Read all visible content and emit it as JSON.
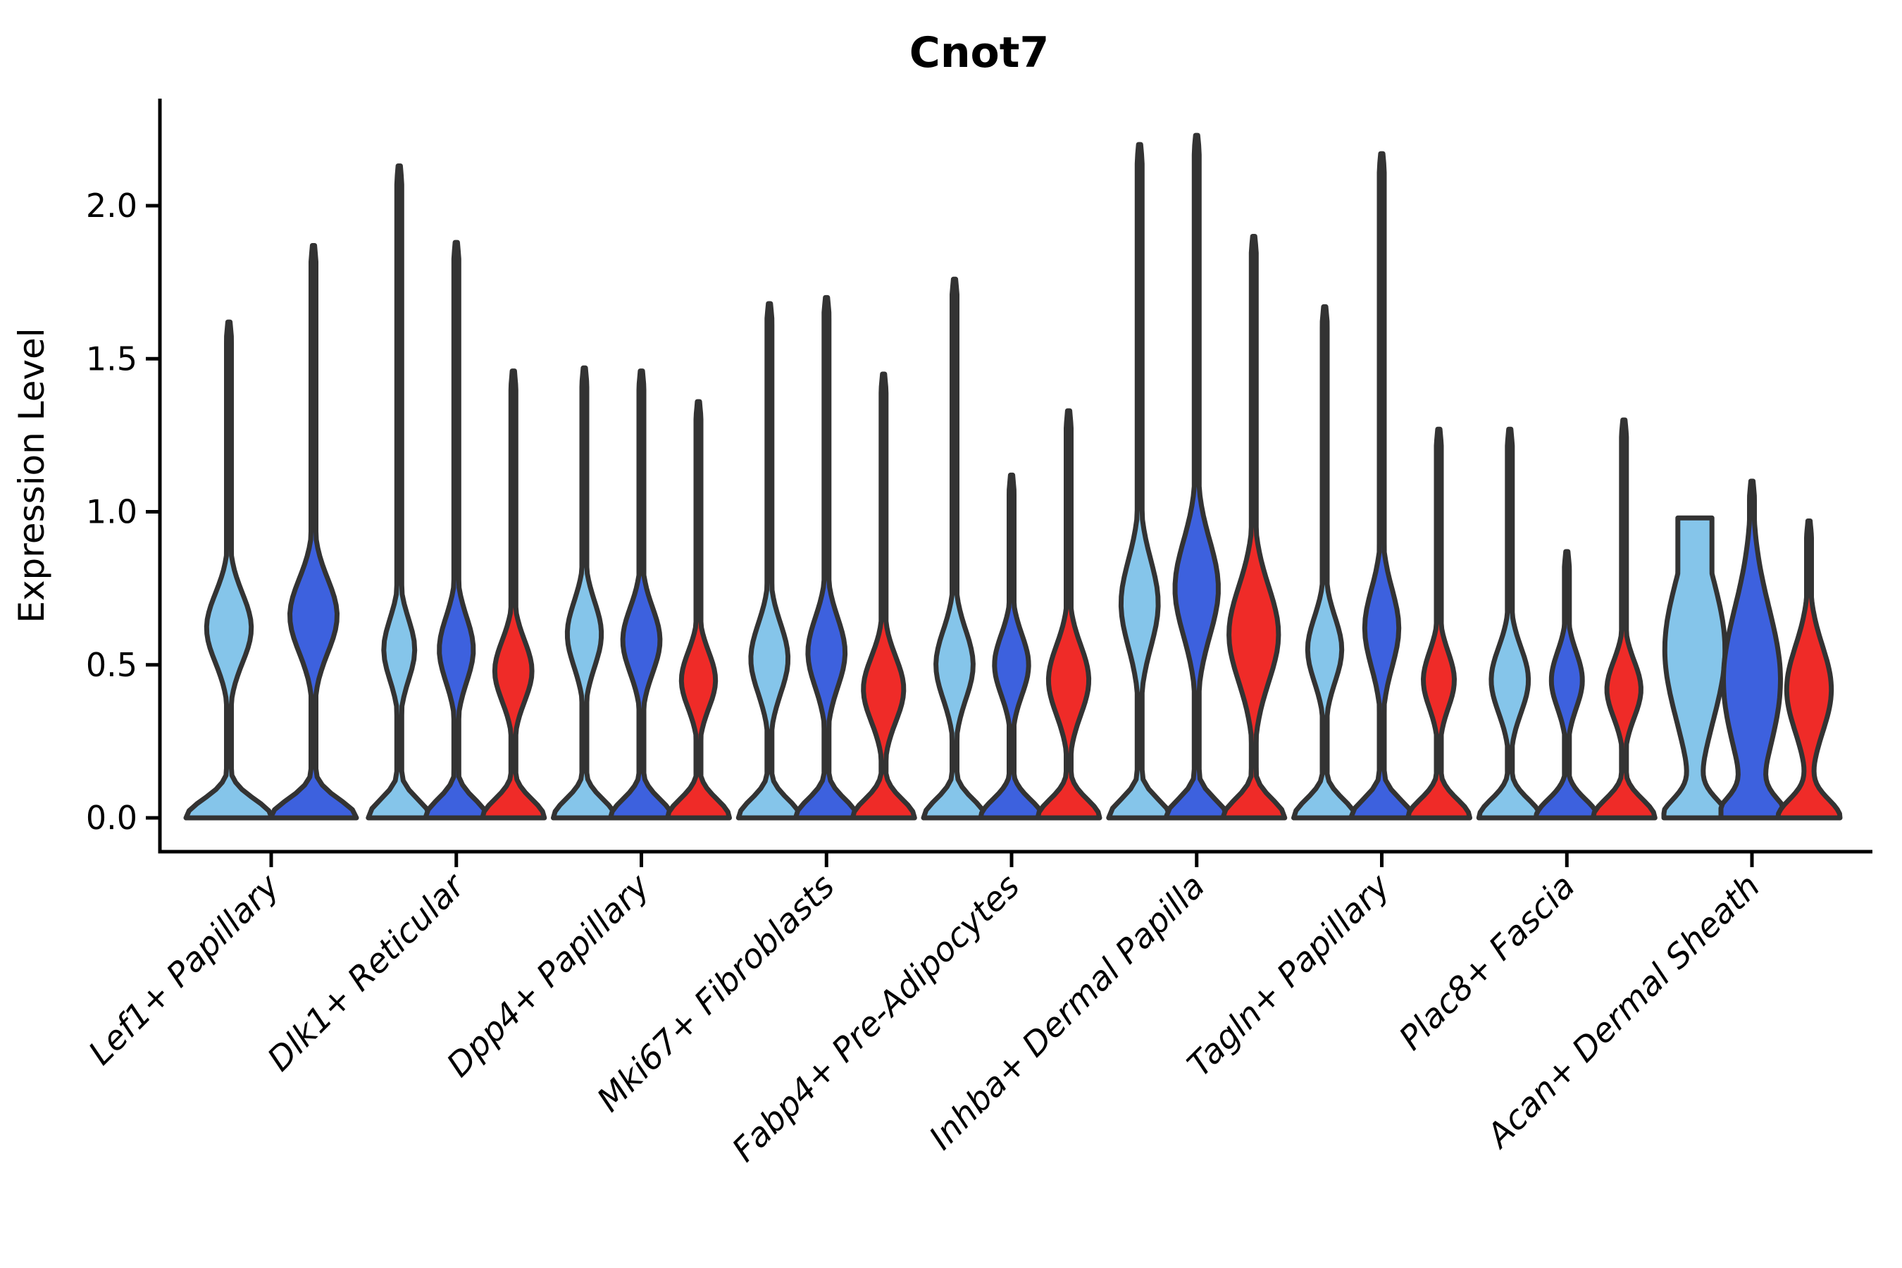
{
  "chart_data": {
    "type": "violin",
    "title": "Cnot7",
    "ylabel": "Expression Level",
    "xlabel": "",
    "ylim": [
      0,
      2.35
    ],
    "yticks": [
      0.0,
      0.5,
      1.0,
      1.5,
      2.0
    ],
    "ytick_labels": [
      "0.0",
      "0.5",
      "1.0",
      "1.5",
      "2.0"
    ],
    "grid": false,
    "legend_position": "none",
    "axis_color": "#000000",
    "violin_outline_color": "#333333",
    "series_colors": {
      "light_blue": "#85C5EA",
      "dark_blue": "#3D61DE",
      "red": "#EF2B28"
    },
    "categories": [
      "Lef1+ Papillary",
      "Dlk1+ Reticular",
      "Dpp4+ Papillary",
      "Mki67+ Fibroblasts",
      "Fabp4+ Pre-Adipocytes",
      "Inhba+ Dermal Papilla",
      "Tagln+ Papillary",
      "Plac8+ Fascia",
      "Acan+ Dermal Sheath"
    ],
    "violins": [
      {
        "category": "Lef1+ Papillary",
        "items": [
          {
            "series": "light_blue",
            "max_expression": 1.62,
            "density_peak": 0.62,
            "peak_spread": 0.16,
            "peak_amp": 0.52
          },
          {
            "series": "dark_blue",
            "max_expression": 1.87,
            "density_peak": 0.66,
            "peak_spread": 0.17,
            "peak_amp": 0.55
          }
        ]
      },
      {
        "category": "Dlk1+ Reticular",
        "items": [
          {
            "series": "light_blue",
            "max_expression": 2.13,
            "density_peak": 0.55,
            "peak_spread": 0.14,
            "peak_amp": 0.5
          },
          {
            "series": "dark_blue",
            "max_expression": 1.88,
            "density_peak": 0.55,
            "peak_spread": 0.15,
            "peak_amp": 0.55
          },
          {
            "series": "red",
            "max_expression": 1.46,
            "density_peak": 0.48,
            "peak_spread": 0.14,
            "peak_amp": 0.6
          }
        ]
      },
      {
        "category": "Dpp4+ Papillary",
        "items": [
          {
            "series": "light_blue",
            "max_expression": 1.47,
            "density_peak": 0.6,
            "peak_spread": 0.15,
            "peak_amp": 0.55
          },
          {
            "series": "dark_blue",
            "max_expression": 1.46,
            "density_peak": 0.58,
            "peak_spread": 0.15,
            "peak_amp": 0.6
          },
          {
            "series": "red",
            "max_expression": 1.36,
            "density_peak": 0.45,
            "peak_spread": 0.13,
            "peak_amp": 0.55
          }
        ]
      },
      {
        "category": "Mki67+ Fibroblasts",
        "items": [
          {
            "series": "light_blue",
            "max_expression": 1.68,
            "density_peak": 0.52,
            "peak_spread": 0.16,
            "peak_amp": 0.6
          },
          {
            "series": "dark_blue",
            "max_expression": 1.7,
            "density_peak": 0.54,
            "peak_spread": 0.16,
            "peak_amp": 0.6
          },
          {
            "series": "red",
            "max_expression": 1.45,
            "density_peak": 0.42,
            "peak_spread": 0.15,
            "peak_amp": 0.65
          }
        ]
      },
      {
        "category": "Fabp4+ Pre-Adipocytes",
        "items": [
          {
            "series": "light_blue",
            "max_expression": 1.76,
            "density_peak": 0.5,
            "peak_spread": 0.16,
            "peak_amp": 0.6
          },
          {
            "series": "dark_blue",
            "max_expression": 1.12,
            "density_peak": 0.5,
            "peak_spread": 0.14,
            "peak_amp": 0.55
          },
          {
            "series": "red",
            "max_expression": 1.33,
            "density_peak": 0.45,
            "peak_spread": 0.16,
            "peak_amp": 0.65
          }
        ]
      },
      {
        "category": "Inhba+ Dermal Papilla",
        "items": [
          {
            "series": "light_blue",
            "max_expression": 2.2,
            "density_peak": 0.7,
            "peak_spread": 0.2,
            "peak_amp": 0.6
          },
          {
            "series": "dark_blue",
            "max_expression": 2.23,
            "density_peak": 0.75,
            "peak_spread": 0.22,
            "peak_amp": 0.7
          },
          {
            "series": "red",
            "max_expression": 1.9,
            "density_peak": 0.6,
            "peak_spread": 0.22,
            "peak_amp": 0.8
          }
        ]
      },
      {
        "category": "Tagln+ Papillary",
        "items": [
          {
            "series": "light_blue",
            "max_expression": 1.67,
            "density_peak": 0.55,
            "peak_spread": 0.15,
            "peak_amp": 0.55
          },
          {
            "series": "dark_blue",
            "max_expression": 2.17,
            "density_peak": 0.62,
            "peak_spread": 0.18,
            "peak_amp": 0.55
          },
          {
            "series": "red",
            "max_expression": 1.27,
            "density_peak": 0.45,
            "peak_spread": 0.13,
            "peak_amp": 0.5
          }
        ]
      },
      {
        "category": "Plac8+ Fascia",
        "items": [
          {
            "series": "light_blue",
            "max_expression": 1.27,
            "density_peak": 0.45,
            "peak_spread": 0.15,
            "peak_amp": 0.6
          },
          {
            "series": "dark_blue",
            "max_expression": 0.87,
            "density_peak": 0.45,
            "peak_spread": 0.13,
            "peak_amp": 0.5
          },
          {
            "series": "red",
            "max_expression": 1.3,
            "density_peak": 0.42,
            "peak_spread": 0.13,
            "peak_amp": 0.55
          }
        ]
      },
      {
        "category": "Acan+ Dermal Sheath",
        "items": [
          {
            "series": "light_blue",
            "max_expression": 0.98,
            "density_peak": 0.55,
            "peak_spread": 0.33,
            "peak_amp": 0.97,
            "flat_top": 0.55
          },
          {
            "series": "dark_blue",
            "max_expression": 1.1,
            "density_peak": 0.45,
            "peak_spread": 0.33,
            "peak_amp": 0.92
          },
          {
            "series": "red",
            "max_expression": 0.97,
            "density_peak": 0.42,
            "peak_spread": 0.2,
            "peak_amp": 0.72
          }
        ]
      }
    ]
  }
}
